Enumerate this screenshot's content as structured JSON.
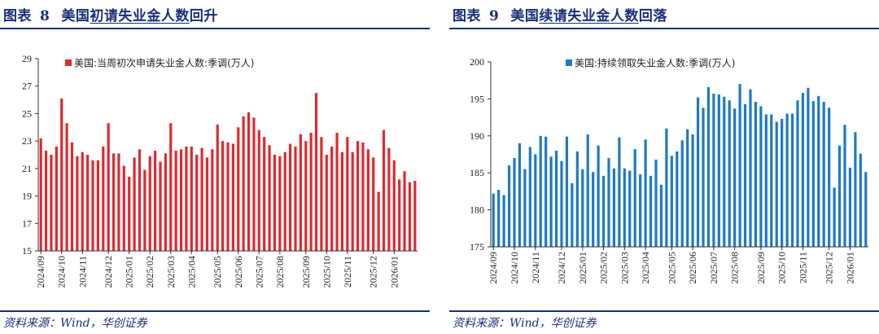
{
  "charts": [
    {
      "figure_label": "图表",
      "figure_number": "8",
      "title_pre": "美国",
      "title_underlined": "初请失业金人数",
      "title_post": "回升",
      "source": "资料来源：Wind，华创证券",
      "color": "#e0282e",
      "chart_data": {
        "type": "bar",
        "title": "图表 8 美国初请失业金人数回升",
        "legend": "美国:当周初次申请失业金人数:季调(万人)",
        "legend_position": "top",
        "ylim": [
          15,
          29
        ],
        "yticks": [
          15,
          17,
          19,
          21,
          23,
          25,
          27,
          29
        ],
        "xtick_labels": [
          "2024/09",
          "2024/10",
          "2024/11",
          "2024/12",
          "2025/01",
          "2025/02",
          "2025/03",
          "2025/04",
          "2025/05",
          "2025/06",
          "2025/07",
          "2025/08",
          "2025/09",
          "2025/10",
          "2025/11",
          "2025/12",
          "2026/01"
        ],
        "xtick_index": [
          0,
          4,
          8,
          13,
          17,
          21,
          25,
          29,
          34,
          38,
          42,
          46,
          51,
          55,
          59,
          64,
          68
        ],
        "values": [
          23.2,
          22.3,
          22.0,
          22.6,
          26.1,
          24.3,
          22.9,
          21.9,
          22.2,
          22.0,
          21.6,
          21.6,
          22.6,
          24.3,
          22.1,
          22.1,
          21.2,
          20.4,
          21.8,
          22.4,
          20.9,
          21.9,
          22.3,
          21.5,
          22.1,
          24.3,
          22.3,
          22.4,
          22.6,
          22.6,
          22.0,
          22.5,
          21.8,
          22.4,
          24.2,
          23.0,
          22.9,
          22.8,
          24.0,
          24.8,
          25.1,
          24.7,
          23.8,
          23.3,
          22.7,
          22.0,
          21.9,
          22.2,
          22.8,
          22.6,
          23.5,
          23.0,
          23.6,
          26.5,
          23.3,
          22.0,
          22.6,
          23.6,
          22.2,
          23.3,
          22.2,
          23.0,
          22.9,
          22.4,
          21.8,
          19.3,
          23.8,
          22.5,
          21.6,
          20.2,
          20.8,
          20.0,
          20.1
        ],
        "ylabel": "",
        "xlabel": ""
      }
    },
    {
      "figure_label": "图表",
      "figure_number": "9",
      "title_pre": "美国",
      "title_underlined": "续请失业金人数",
      "title_post": "回落",
      "source": "资料来源：Wind，华创证券",
      "color": "#1f7ac4",
      "chart_data": {
        "type": "bar",
        "title": "图表 9 美国续请失业金人数回落",
        "legend": "美国:持续领取失业金人数:季调(万人)",
        "legend_position": "top",
        "ylim": [
          175,
          200
        ],
        "yticks": [
          175,
          180,
          185,
          190,
          195,
          200
        ],
        "xtick_labels": [
          "2024/09",
          "2024/10",
          "2024/11",
          "2024/12",
          "2025/01",
          "2025/02",
          "2025/03",
          "2025/04",
          "2025/05",
          "2025/06",
          "2025/07",
          "2025/08",
          "2025/09",
          "2025/10",
          "2025/11",
          "2025/12",
          "2026/01"
        ],
        "xtick_index": [
          0,
          4,
          8,
          13,
          17,
          21,
          25,
          29,
          34,
          38,
          42,
          46,
          51,
          55,
          59,
          64,
          68
        ],
        "values": [
          182.2,
          182.7,
          182.0,
          186.0,
          187.0,
          189.0,
          185.5,
          188.5,
          187.5,
          190.0,
          189.9,
          187.2,
          188.0,
          186.6,
          189.9,
          183.6,
          187.9,
          185.5,
          190.2,
          185.1,
          188.7,
          184.6,
          187.0,
          185.6,
          189.8,
          185.6,
          185.3,
          188.2,
          184.8,
          189.5,
          184.6,
          186.8,
          183.4,
          191.0,
          187.3,
          187.9,
          189.4,
          190.9,
          190.2,
          195.2,
          193.8,
          196.6,
          195.7,
          195.6,
          195.3,
          194.8,
          193.7,
          197.0,
          194.3,
          196.3,
          194.6,
          194.0,
          192.9,
          192.9,
          191.9,
          192.3,
          193.0,
          193.0,
          194.8,
          195.8,
          196.5,
          194.7,
          195.4,
          194.6,
          193.8,
          183.0,
          188.7,
          191.5,
          185.7,
          190.5,
          187.6,
          185.1
        ]
      }
    }
  ]
}
